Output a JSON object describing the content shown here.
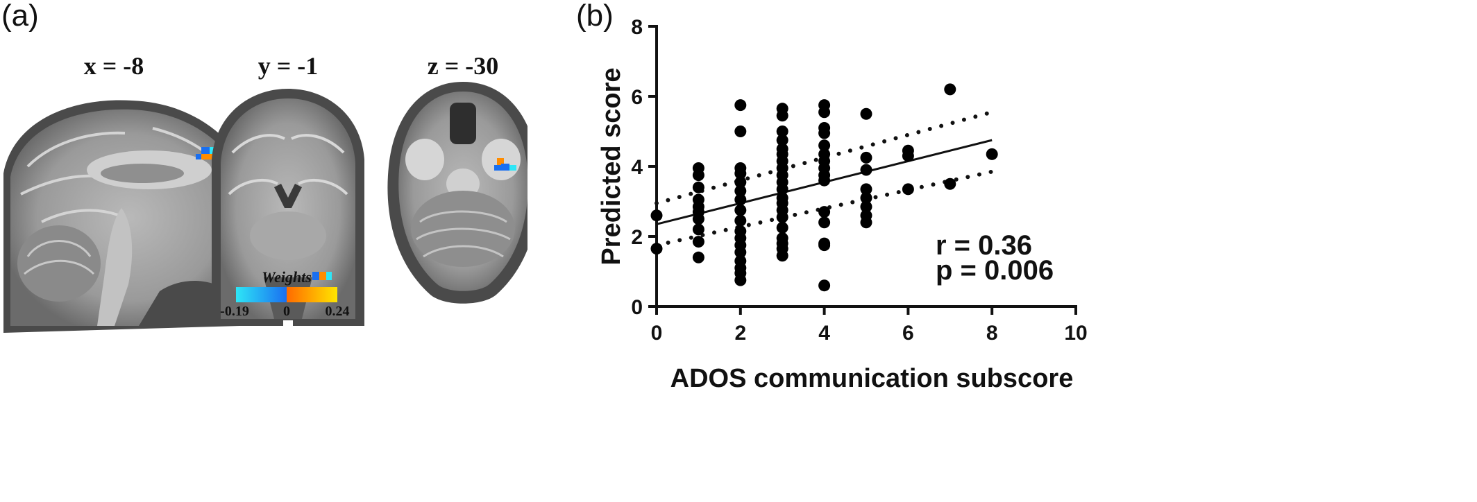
{
  "panel_a": {
    "label": "(a)",
    "slices": [
      {
        "label": "x = -8",
        "view": "sagittal"
      },
      {
        "label": "y = -1",
        "view": "coronal"
      },
      {
        "label": "z = -30",
        "view": "axial"
      }
    ],
    "colorbar": {
      "title": "Weights",
      "min_label": "-0.19",
      "mid_label": "0",
      "max_label": "0.24",
      "colors": {
        "neg_light": "#2ee6f6",
        "neg_dark": "#1a6ff0",
        "pos_dark": "#ff6a00",
        "pos_light": "#ffe600"
      }
    }
  },
  "panel_b": {
    "label": "(b)",
    "stats": {
      "r": "r = 0.36",
      "p": "p = 0.006"
    }
  },
  "chart_data": {
    "type": "scatter",
    "xlabel": "ADOS communication subscore",
    "ylabel": "Predicted score",
    "xlim": [
      0,
      10
    ],
    "ylim": [
      0,
      8
    ],
    "xticks": [
      0,
      2,
      4,
      6,
      8,
      10
    ],
    "yticks": [
      0,
      2,
      4,
      6,
      8
    ],
    "grid": false,
    "points": [
      [
        0,
        2.6
      ],
      [
        0,
        1.65
      ],
      [
        1,
        3.95
      ],
      [
        1,
        3.75
      ],
      [
        1,
        3.4
      ],
      [
        1,
        3.05
      ],
      [
        1,
        2.85
      ],
      [
        1,
        2.7
      ],
      [
        1,
        2.5
      ],
      [
        1,
        2.2
      ],
      [
        1,
        1.85
      ],
      [
        1,
        1.4
      ],
      [
        2,
        5.75
      ],
      [
        2,
        5.0
      ],
      [
        2,
        3.95
      ],
      [
        2,
        3.8
      ],
      [
        2,
        3.55
      ],
      [
        2,
        3.3
      ],
      [
        2,
        3.05
      ],
      [
        2,
        2.75
      ],
      [
        2,
        2.45
      ],
      [
        2,
        2.15
      ],
      [
        2,
        1.95
      ],
      [
        2,
        1.75
      ],
      [
        2,
        1.55
      ],
      [
        2,
        1.3
      ],
      [
        2,
        1.1
      ],
      [
        2,
        0.95
      ],
      [
        2,
        0.75
      ],
      [
        3,
        5.65
      ],
      [
        3,
        5.45
      ],
      [
        3,
        5.0
      ],
      [
        3,
        4.75
      ],
      [
        3,
        4.5
      ],
      [
        3,
        4.35
      ],
      [
        3,
        4.15
      ],
      [
        3,
        3.95
      ],
      [
        3,
        3.75
      ],
      [
        3,
        3.55
      ],
      [
        3,
        3.35
      ],
      [
        3,
        3.1
      ],
      [
        3,
        2.95
      ],
      [
        3,
        2.75
      ],
      [
        3,
        2.55
      ],
      [
        3,
        2.25
      ],
      [
        3,
        1.95
      ],
      [
        3,
        1.8
      ],
      [
        3,
        1.65
      ],
      [
        3,
        1.45
      ],
      [
        4,
        5.75
      ],
      [
        4,
        5.55
      ],
      [
        4,
        5.1
      ],
      [
        4,
        4.95
      ],
      [
        4,
        4.6
      ],
      [
        4,
        4.35
      ],
      [
        4,
        4.15
      ],
      [
        4,
        3.95
      ],
      [
        4,
        3.75
      ],
      [
        4,
        3.6
      ],
      [
        4,
        2.7
      ],
      [
        4,
        2.4
      ],
      [
        4,
        1.8
      ],
      [
        4,
        1.75
      ],
      [
        4,
        0.6
      ],
      [
        5,
        5.5
      ],
      [
        5,
        4.25
      ],
      [
        5,
        3.9
      ],
      [
        5,
        3.35
      ],
      [
        5,
        3.1
      ],
      [
        5,
        2.85
      ],
      [
        5,
        2.6
      ],
      [
        5,
        2.4
      ],
      [
        6,
        4.45
      ],
      [
        6,
        4.3
      ],
      [
        6,
        3.35
      ],
      [
        7,
        6.2
      ],
      [
        7,
        3.5
      ],
      [
        8,
        4.35
      ]
    ],
    "fit_line": {
      "x": [
        0,
        8
      ],
      "y": [
        2.35,
        4.75
      ]
    },
    "ci_upper": {
      "x": [
        0,
        8
      ],
      "y": [
        2.95,
        5.55
      ]
    },
    "ci_lower": {
      "x": [
        0,
        8
      ],
      "y": [
        1.75,
        3.85
      ]
    }
  }
}
